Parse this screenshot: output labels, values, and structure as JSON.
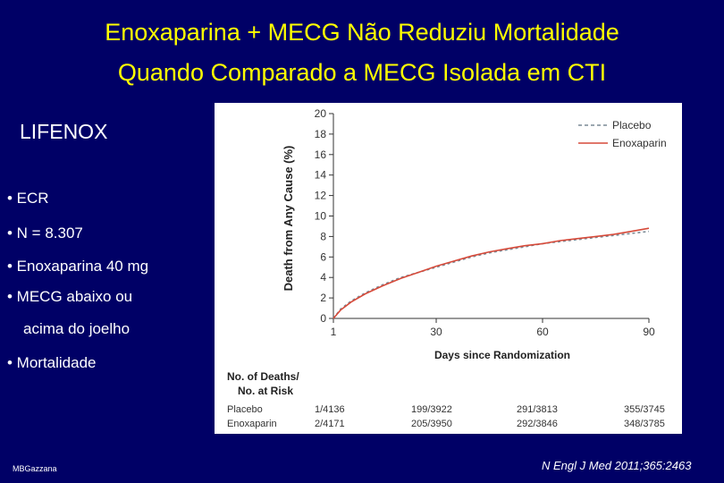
{
  "slide": {
    "title_line1": "Enoxaparina + MECG Não Reduziu Mortalidade",
    "title_line2": "Quando Comparado a MECG Isolada em CTI",
    "subtitle": "LIFENOX",
    "bullets": [
      "• ECR",
      "• N = 8.307",
      "• Enoxaparina 40 mg",
      "• MECG abaixo ou",
      "acima do joelho",
      "• Mortalidade"
    ],
    "author": "MBGazzana",
    "citation": "N Engl J Med 2011;365:2463"
  },
  "chart_data": {
    "type": "line",
    "title": "",
    "xlabel": "Days since Randomization",
    "ylabel": "Death from Any Cause (%)",
    "xlim": [
      1,
      90
    ],
    "ylim": [
      0,
      20
    ],
    "xticks": [
      "1",
      "30",
      "60",
      "90"
    ],
    "yticks": [
      "0",
      "2",
      "4",
      "6",
      "8",
      "10",
      "12",
      "14",
      "16",
      "18",
      "20"
    ],
    "legend_position": "top-right",
    "series": [
      {
        "name": "Placebo",
        "style": "dashed",
        "color": "#7a8a95",
        "x": [
          1,
          3,
          6,
          10,
          15,
          20,
          25,
          30,
          35,
          40,
          45,
          50,
          55,
          60,
          65,
          70,
          75,
          80,
          85,
          90
        ],
        "y": [
          0.0,
          0.9,
          1.7,
          2.5,
          3.3,
          4.0,
          4.5,
          5.0,
          5.5,
          6.0,
          6.4,
          6.7,
          7.0,
          7.3,
          7.5,
          7.7,
          7.9,
          8.1,
          8.3,
          8.5
        ]
      },
      {
        "name": "Enoxaparin",
        "style": "solid",
        "color": "#d64a3a",
        "x": [
          1,
          3,
          6,
          10,
          15,
          20,
          25,
          30,
          35,
          40,
          45,
          50,
          55,
          60,
          65,
          70,
          75,
          80,
          85,
          90
        ],
        "y": [
          0.0,
          0.8,
          1.6,
          2.4,
          3.2,
          3.9,
          4.5,
          5.1,
          5.6,
          6.1,
          6.5,
          6.8,
          7.1,
          7.3,
          7.6,
          7.8,
          8.0,
          8.2,
          8.5,
          8.8
        ]
      }
    ],
    "risk_table": {
      "header": [
        "No. of Deaths/",
        "No. at Risk"
      ],
      "rows": [
        {
          "label": "Placebo",
          "values": [
            "1/4136",
            "199/3922",
            "291/3813",
            "355/3745"
          ]
        },
        {
          "label": "Enoxaparin",
          "values": [
            "2/4171",
            "205/3950",
            "292/3846",
            "348/3785"
          ]
        }
      ]
    }
  }
}
